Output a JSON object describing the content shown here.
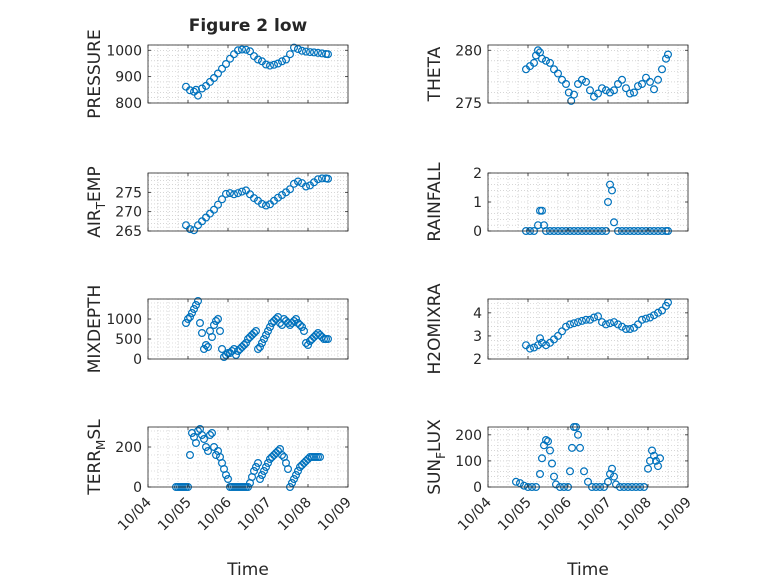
{
  "figure": {
    "title": "Figure 2 low",
    "marker_color": "#0072BD",
    "axis_color": "#262626",
    "grid_color": "#bdbdbd",
    "background": "#ffffff"
  },
  "chart_data": [
    {
      "type": "scatter",
      "title": "Figure 2 low",
      "ylabel": "PRESSURE",
      "xlabel": "",
      "marker": "open-circle",
      "xlim": [
        "10/04",
        "10/09"
      ],
      "xticks": [
        "10/04",
        "10/05",
        "10/06",
        "10/07",
        "10/08",
        "10/09"
      ],
      "ylim": [
        800,
        1020
      ],
      "yticks": [
        800,
        900,
        1000
      ],
      "grid": true,
      "x": [
        4.95,
        5.05,
        5.15,
        5.2,
        5.25,
        5.35,
        5.45,
        5.55,
        5.65,
        5.75,
        5.85,
        5.95,
        6.05,
        6.15,
        6.25,
        6.35,
        6.45,
        6.55,
        6.65,
        6.75,
        6.85,
        6.95,
        7.05,
        7.15,
        7.25,
        7.35,
        7.45,
        7.55,
        7.65,
        7.75,
        7.85,
        7.95,
        8.05,
        8.15,
        8.25,
        8.35,
        8.45,
        8.5
      ],
      "y": [
        862,
        848,
        843,
        850,
        828,
        855,
        865,
        880,
        895,
        912,
        930,
        948,
        968,
        985,
        1000,
        1003,
        1002,
        996,
        978,
        965,
        958,
        946,
        942,
        945,
        950,
        958,
        965,
        985,
        1010,
        1005,
        998,
        995,
        993,
        992,
        990,
        988,
        986,
        985
      ]
    },
    {
      "type": "scatter",
      "ylabel": "THETA",
      "xlabel": "",
      "marker": "open-circle",
      "xlim": [
        "10/04",
        "10/09"
      ],
      "xticks": [
        "10/04",
        "10/05",
        "10/06",
        "10/07",
        "10/08",
        "10/09"
      ],
      "ylim": [
        275,
        280.5
      ],
      "yticks": [
        275,
        280
      ],
      "grid": true,
      "x": [
        4.95,
        5.05,
        5.15,
        5.2,
        5.25,
        5.3,
        5.35,
        5.45,
        5.55,
        5.65,
        5.75,
        5.85,
        5.95,
        6.02,
        6.08,
        6.15,
        6.25,
        6.35,
        6.45,
        6.55,
        6.65,
        6.75,
        6.85,
        6.95,
        7.05,
        7.15,
        7.25,
        7.35,
        7.45,
        7.55,
        7.65,
        7.75,
        7.85,
        7.95,
        8.05,
        8.15,
        8.25,
        8.35,
        8.45,
        8.5
      ],
      "y": [
        278.2,
        278.5,
        278.8,
        279.5,
        280,
        279.8,
        279.2,
        279.0,
        278.8,
        278.2,
        277.8,
        277.2,
        276.8,
        276.0,
        275.2,
        275.8,
        276.8,
        277.2,
        277.0,
        276.2,
        275.6,
        275.9,
        276.4,
        276.2,
        276.0,
        276.2,
        276.8,
        277.2,
        276.4,
        275.9,
        276.0,
        276.6,
        276.8,
        277.4,
        277.0,
        276.3,
        277.2,
        278.2,
        279.2,
        279.6
      ]
    },
    {
      "type": "scatter",
      "ylabel": "AIRTEMP",
      "xlabel": "",
      "marker": "open-circle",
      "xlim": [
        "10/04",
        "10/09"
      ],
      "xticks": [
        "10/04",
        "10/05",
        "10/06",
        "10/07",
        "10/08",
        "10/09"
      ],
      "ylim": [
        265,
        280
      ],
      "yticks": [
        265,
        270,
        275
      ],
      "grid": true,
      "x": [
        4.95,
        5.05,
        5.15,
        5.25,
        5.35,
        5.45,
        5.55,
        5.65,
        5.75,
        5.85,
        5.95,
        6.05,
        6.15,
        6.25,
        6.35,
        6.45,
        6.55,
        6.65,
        6.75,
        6.85,
        6.95,
        7.05,
        7.15,
        7.25,
        7.35,
        7.45,
        7.55,
        7.65,
        7.75,
        7.85,
        7.95,
        8.05,
        8.15,
        8.25,
        8.35,
        8.45,
        8.5
      ],
      "y": [
        266.5,
        265.5,
        265.2,
        266.5,
        267.5,
        268.5,
        269.5,
        270.5,
        271.8,
        273.2,
        274.6,
        274.8,
        274.5,
        274.8,
        275.2,
        275.5,
        274.5,
        273.5,
        272.8,
        272.0,
        271.6,
        271.9,
        272.8,
        273.6,
        274.3,
        275.0,
        275.8,
        277.2,
        277.8,
        277.4,
        276.5,
        276.8,
        277.6,
        278.4,
        278.6,
        278.6,
        278.5
      ]
    },
    {
      "type": "scatter",
      "ylabel": "RAINFALL",
      "xlabel": "",
      "marker": "open-circle",
      "xlim": [
        "10/04",
        "10/09"
      ],
      "xticks": [
        "10/04",
        "10/05",
        "10/06",
        "10/07",
        "10/08",
        "10/09"
      ],
      "ylim": [
        0,
        2
      ],
      "yticks": [
        0,
        1,
        2
      ],
      "grid": true,
      "x": [
        4.95,
        5.05,
        5.15,
        5.25,
        5.3,
        5.35,
        5.4,
        5.45,
        5.55,
        5.65,
        5.75,
        5.85,
        5.95,
        6.05,
        6.15,
        6.25,
        6.35,
        6.45,
        6.55,
        6.65,
        6.75,
        6.85,
        6.95,
        7.0,
        7.05,
        7.1,
        7.15,
        7.25,
        7.35,
        7.45,
        7.55,
        7.65,
        7.75,
        7.85,
        7.95,
        8.05,
        8.15,
        8.25,
        8.35,
        8.45,
        8.5
      ],
      "y": [
        0,
        0,
        0,
        0.2,
        0.7,
        0.7,
        0.2,
        0,
        0,
        0,
        0,
        0,
        0,
        0,
        0,
        0,
        0,
        0,
        0,
        0,
        0,
        0,
        0,
        1.0,
        1.6,
        1.4,
        0.3,
        0,
        0,
        0,
        0,
        0,
        0,
        0,
        0,
        0,
        0,
        0,
        0,
        0,
        0
      ]
    },
    {
      "type": "scatter",
      "ylabel": "MIXDEPTH",
      "xlabel": "",
      "marker": "open-circle",
      "xlim": [
        "10/04",
        "10/09"
      ],
      "xticks": [
        "10/04",
        "10/05",
        "10/06",
        "10/07",
        "10/08",
        "10/09"
      ],
      "ylim": [
        0,
        1500
      ],
      "yticks": [
        0,
        500,
        1000
      ],
      "grid": true,
      "x": [
        4.95,
        5.0,
        5.05,
        5.1,
        5.15,
        5.2,
        5.25,
        5.3,
        5.35,
        5.4,
        5.45,
        5.5,
        5.55,
        5.6,
        5.65,
        5.7,
        5.75,
        5.8,
        5.85,
        5.9,
        5.95,
        6.0,
        6.05,
        6.1,
        6.15,
        6.2,
        6.25,
        6.3,
        6.35,
        6.4,
        6.45,
        6.5,
        6.55,
        6.6,
        6.65,
        6.7,
        6.75,
        6.8,
        6.85,
        6.9,
        6.95,
        7.0,
        7.05,
        7.1,
        7.15,
        7.2,
        7.25,
        7.3,
        7.35,
        7.4,
        7.45,
        7.5,
        7.55,
        7.6,
        7.65,
        7.7,
        7.75,
        7.8,
        7.85,
        7.9,
        7.95,
        8.0,
        8.05,
        8.1,
        8.15,
        8.2,
        8.25,
        8.3,
        8.35,
        8.4,
        8.45,
        8.5
      ],
      "y": [
        900,
        1000,
        1050,
        1150,
        1250,
        1350,
        1450,
        900,
        650,
        250,
        350,
        300,
        700,
        550,
        850,
        950,
        1000,
        700,
        250,
        50,
        100,
        150,
        150,
        200,
        250,
        100,
        200,
        250,
        300,
        350,
        400,
        500,
        550,
        600,
        650,
        700,
        250,
        300,
        400,
        500,
        600,
        700,
        800,
        900,
        950,
        1000,
        1050,
        900,
        850,
        1000,
        950,
        900,
        850,
        900,
        950,
        1000,
        900,
        850,
        800,
        700,
        400,
        350,
        450,
        500,
        550,
        600,
        650,
        600,
        550,
        500,
        500,
        500
      ]
    },
    {
      "type": "scatter",
      "ylabel": "H2OMIXRA",
      "xlabel": "",
      "marker": "open-circle",
      "xlim": [
        "10/04",
        "10/09"
      ],
      "xticks": [
        "10/04",
        "10/05",
        "10/06",
        "10/07",
        "10/08",
        "10/09"
      ],
      "ylim": [
        2,
        4.6
      ],
      "yticks": [
        2,
        3,
        4
      ],
      "grid": true,
      "x": [
        4.95,
        5.05,
        5.15,
        5.25,
        5.3,
        5.35,
        5.45,
        5.55,
        5.65,
        5.75,
        5.85,
        5.95,
        6.05,
        6.15,
        6.25,
        6.35,
        6.45,
        6.55,
        6.65,
        6.75,
        6.85,
        6.95,
        7.05,
        7.15,
        7.25,
        7.35,
        7.45,
        7.55,
        7.65,
        7.75,
        7.85,
        7.95,
        8.05,
        8.15,
        8.25,
        8.35,
        8.45,
        8.5
      ],
      "y": [
        2.6,
        2.45,
        2.5,
        2.6,
        2.9,
        2.7,
        2.6,
        2.7,
        2.85,
        3.0,
        3.2,
        3.4,
        3.5,
        3.55,
        3.6,
        3.65,
        3.7,
        3.7,
        3.8,
        3.85,
        3.6,
        3.5,
        3.55,
        3.6,
        3.5,
        3.4,
        3.3,
        3.3,
        3.35,
        3.5,
        3.7,
        3.75,
        3.8,
        3.9,
        4.0,
        4.1,
        4.3,
        4.45
      ]
    },
    {
      "type": "scatter",
      "ylabel": "TERRMSL",
      "xlabel": "Time",
      "marker": "open-circle",
      "xlim": [
        "10/04",
        "10/09"
      ],
      "xticks": [
        "10/04",
        "10/05",
        "10/06",
        "10/07",
        "10/08",
        "10/09"
      ],
      "ylim": [
        0,
        300
      ],
      "yticks": [
        0,
        200
      ],
      "grid": true,
      "x": [
        4.7,
        4.75,
        4.8,
        4.85,
        4.9,
        4.95,
        5.0,
        5.05,
        5.1,
        5.15,
        5.2,
        5.25,
        5.3,
        5.35,
        5.4,
        5.45,
        5.5,
        5.55,
        5.6,
        5.65,
        5.7,
        5.75,
        5.8,
        5.85,
        5.9,
        5.95,
        6.0,
        6.05,
        6.1,
        6.15,
        6.2,
        6.25,
        6.3,
        6.35,
        6.4,
        6.45,
        6.5,
        6.55,
        6.6,
        6.65,
        6.7,
        6.75,
        6.8,
        6.85,
        6.9,
        6.95,
        7.0,
        7.05,
        7.1,
        7.15,
        7.2,
        7.25,
        7.3,
        7.35,
        7.4,
        7.45,
        7.5,
        7.55,
        7.6,
        7.65,
        7.7,
        7.75,
        7.8,
        7.85,
        7.9,
        7.95,
        8.0,
        8.05,
        8.1,
        8.15,
        8.2,
        8.25,
        8.3
      ],
      "y": [
        0,
        0,
        0,
        0,
        0,
        0,
        0,
        160,
        270,
        250,
        220,
        280,
        290,
        260,
        240,
        200,
        180,
        260,
        270,
        200,
        160,
        180,
        150,
        120,
        90,
        60,
        40,
        0,
        0,
        0,
        0,
        0,
        0,
        0,
        0,
        0,
        0,
        20,
        50,
        80,
        100,
        120,
        40,
        60,
        80,
        100,
        120,
        140,
        150,
        160,
        170,
        180,
        190,
        160,
        150,
        120,
        90,
        0,
        20,
        40,
        60,
        80,
        100,
        110,
        120,
        130,
        140,
        150,
        150,
        150,
        150,
        150,
        150
      ]
    },
    {
      "type": "scatter",
      "ylabel": "SUNFLUX",
      "xlabel": "Time",
      "marker": "open-circle",
      "xlim": [
        "10/04",
        "10/09"
      ],
      "xticks": [
        "10/04",
        "10/05",
        "10/06",
        "10/07",
        "10/08",
        "10/09"
      ],
      "ylim": [
        0,
        230
      ],
      "yticks": [
        0,
        100,
        200
      ],
      "grid": true,
      "x": [
        4.7,
        4.8,
        4.9,
        5.0,
        5.1,
        5.2,
        5.3,
        5.35,
        5.4,
        5.45,
        5.5,
        5.55,
        5.6,
        5.65,
        5.7,
        5.8,
        5.9,
        6.0,
        6.05,
        6.1,
        6.15,
        6.2,
        6.25,
        6.3,
        6.4,
        6.5,
        6.6,
        6.7,
        6.8,
        6.9,
        7.0,
        7.05,
        7.1,
        7.15,
        7.2,
        7.3,
        7.4,
        7.5,
        7.6,
        7.7,
        7.8,
        7.9,
        8.0,
        8.05,
        8.1,
        8.15,
        8.2,
        8.25,
        8.3
      ],
      "y": [
        20,
        15,
        5,
        0,
        0,
        0,
        50,
        110,
        160,
        180,
        175,
        140,
        90,
        40,
        10,
        0,
        0,
        0,
        60,
        150,
        230,
        230,
        200,
        150,
        60,
        20,
        0,
        0,
        0,
        0,
        20,
        50,
        70,
        40,
        10,
        0,
        0,
        0,
        0,
        0,
        0,
        0,
        70,
        100,
        140,
        120,
        100,
        80,
        110
      ]
    }
  ]
}
